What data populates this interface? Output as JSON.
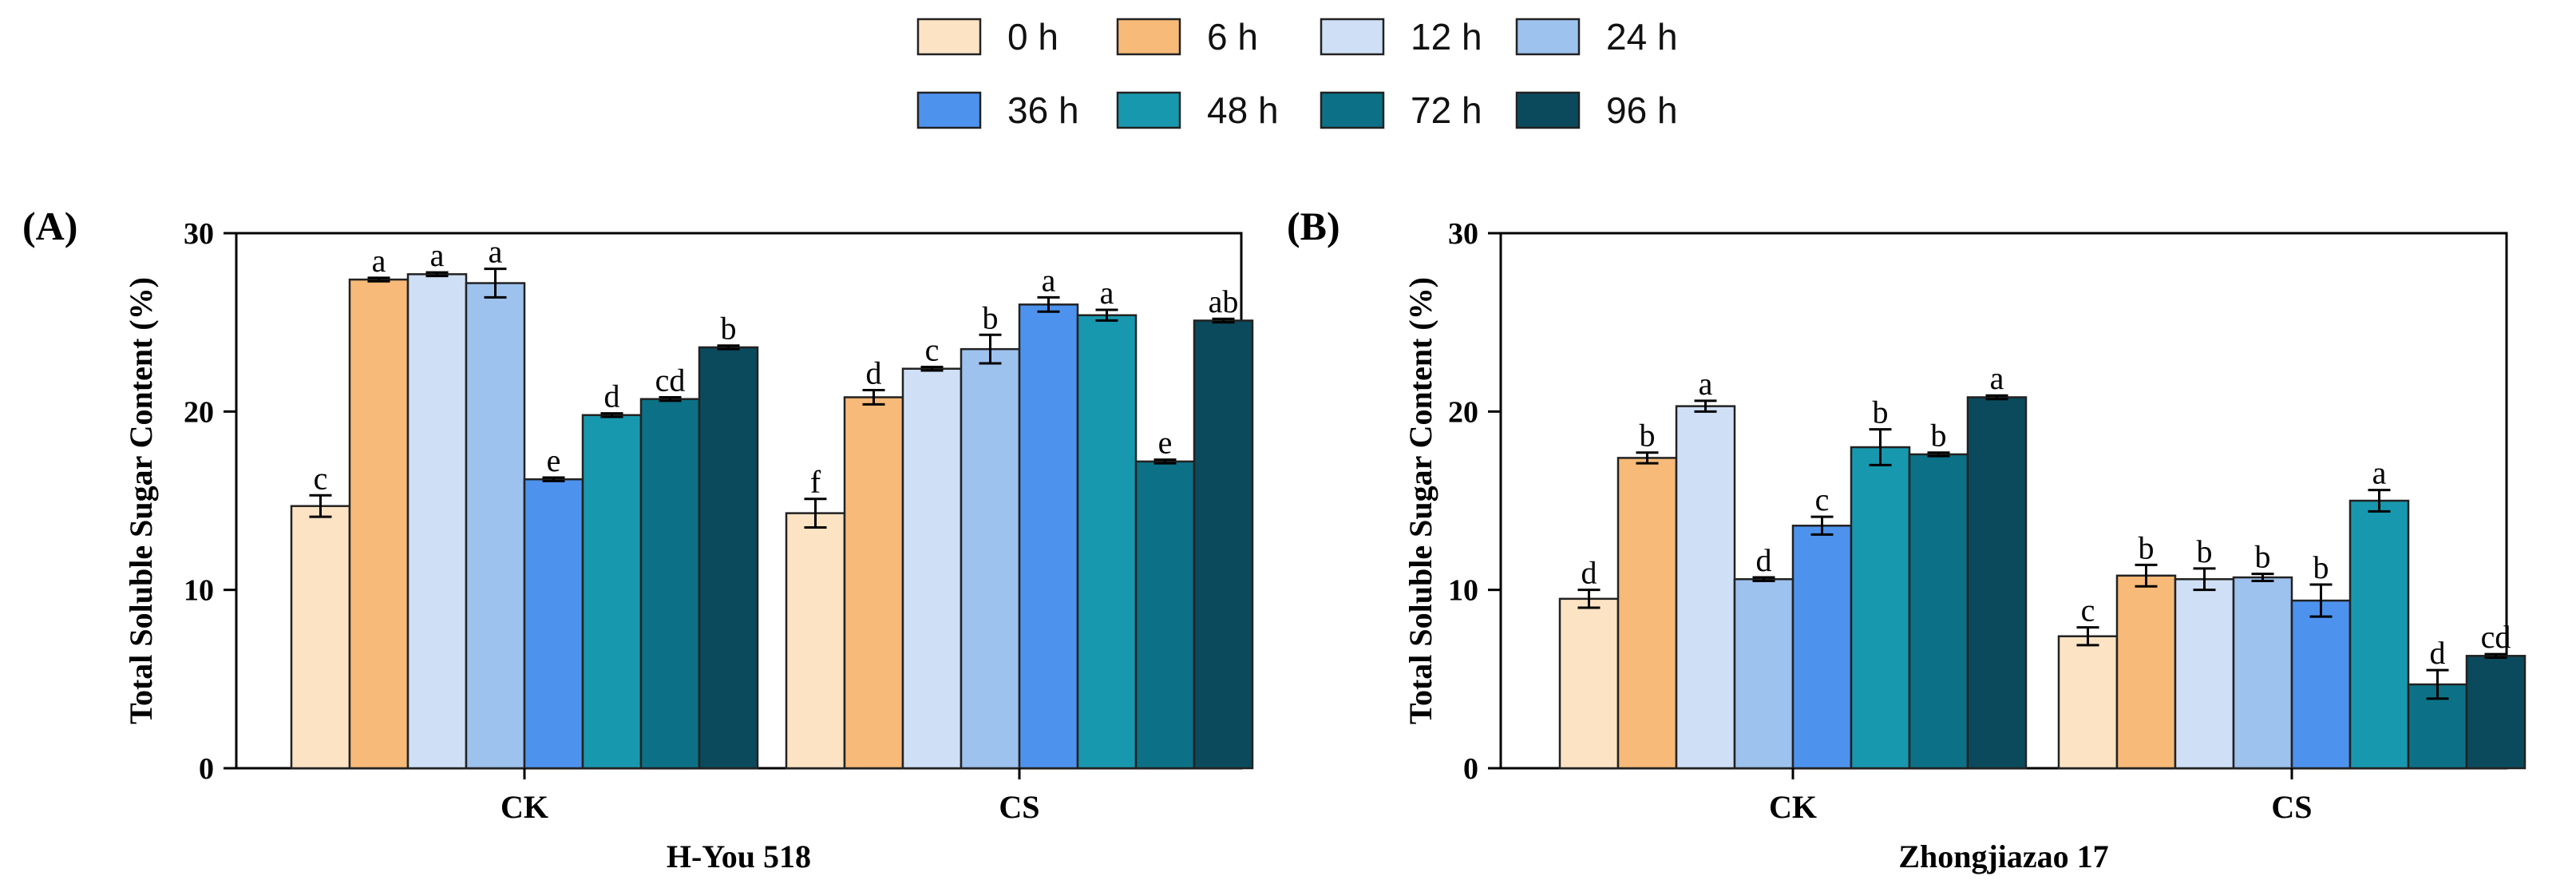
{
  "legend": {
    "entries": [
      {
        "label": "0 h",
        "color": "#FCE3C4"
      },
      {
        "label": "6 h",
        "color": "#F7BA78"
      },
      {
        "label": "12 h",
        "color": "#CFE0F6"
      },
      {
        "label": "24 h",
        "color": "#9EC2EE"
      },
      {
        "label": "36 h",
        "color": "#4D93EE"
      },
      {
        "label": "48 h",
        "color": "#1898AE"
      },
      {
        "label": "72 h",
        "color": "#0C7186"
      },
      {
        "label": "96 h",
        "color": "#0A4A5C"
      }
    ]
  },
  "chart_data": [
    {
      "type": "bar",
      "panel_label": "(A)",
      "title": "",
      "ylabel": "Total Soluble Sugar Content (%)",
      "xlabel": "H-You 518",
      "ylim": [
        0,
        30
      ],
      "yticks": [
        0,
        10,
        20,
        30
      ],
      "grid": false,
      "categories": [
        "CK",
        "CS"
      ],
      "series": [
        {
          "name": "0 h",
          "values": [
            14.7,
            14.3
          ],
          "errors": [
            0.6,
            0.8
          ],
          "letters": [
            "c",
            "f"
          ]
        },
        {
          "name": "6 h",
          "values": [
            27.4,
            20.8
          ],
          "errors": [
            0.1,
            0.4
          ],
          "letters": [
            "a",
            "d"
          ]
        },
        {
          "name": "12 h",
          "values": [
            27.7,
            22.4
          ],
          "errors": [
            0.1,
            0.1
          ],
          "letters": [
            "a",
            "c"
          ]
        },
        {
          "name": "24 h",
          "values": [
            27.2,
            23.5
          ],
          "errors": [
            0.8,
            0.8
          ],
          "letters": [
            "a",
            "b"
          ]
        },
        {
          "name": "36 h",
          "values": [
            16.2,
            26.0
          ],
          "errors": [
            0.1,
            0.4
          ],
          "letters": [
            "e",
            "a"
          ]
        },
        {
          "name": "48 h",
          "values": [
            19.8,
            25.4
          ],
          "errors": [
            0.1,
            0.3
          ],
          "letters": [
            "d",
            "a"
          ]
        },
        {
          "name": "72 h",
          "values": [
            20.7,
            17.2
          ],
          "errors": [
            0.1,
            0.1
          ],
          "letters": [
            "cd",
            "e"
          ]
        },
        {
          "name": "96 h",
          "values": [
            23.6,
            25.1
          ],
          "errors": [
            0.1,
            0.1
          ],
          "letters": [
            "b",
            "ab"
          ]
        }
      ]
    },
    {
      "type": "bar",
      "panel_label": "(B)",
      "title": "",
      "ylabel": "Total Soluble Sugar Content (%)",
      "xlabel": "Zhongjiazao 17",
      "ylim": [
        0,
        30
      ],
      "yticks": [
        0,
        10,
        20,
        30
      ],
      "grid": false,
      "categories": [
        "CK",
        "CS"
      ],
      "series": [
        {
          "name": "0 h",
          "values": [
            9.5,
            7.4
          ],
          "errors": [
            0.5,
            0.5
          ],
          "letters": [
            "d",
            "c"
          ]
        },
        {
          "name": "6 h",
          "values": [
            17.4,
            10.8
          ],
          "errors": [
            0.3,
            0.6
          ],
          "letters": [
            "b",
            "b"
          ]
        },
        {
          "name": "12 h",
          "values": [
            20.3,
            10.6
          ],
          "errors": [
            0.3,
            0.6
          ],
          "letters": [
            "a",
            "b"
          ]
        },
        {
          "name": "24 h",
          "values": [
            10.6,
            10.7
          ],
          "errors": [
            0.1,
            0.2
          ],
          "letters": [
            "d",
            "b"
          ]
        },
        {
          "name": "36 h",
          "values": [
            13.6,
            9.4
          ],
          "errors": [
            0.5,
            0.9
          ],
          "letters": [
            "c",
            "b"
          ]
        },
        {
          "name": "48 h",
          "values": [
            18.0,
            15.0
          ],
          "errors": [
            1.0,
            0.6
          ],
          "letters": [
            "b",
            "a"
          ]
        },
        {
          "name": "72 h",
          "values": [
            17.6,
            4.7
          ],
          "errors": [
            0.1,
            0.8
          ],
          "letters": [
            "b",
            "d"
          ]
        },
        {
          "name": "96 h",
          "values": [
            20.8,
            6.3
          ],
          "errors": [
            0.1,
            0.1
          ],
          "letters": [
            "a",
            "cd"
          ]
        }
      ]
    }
  ]
}
